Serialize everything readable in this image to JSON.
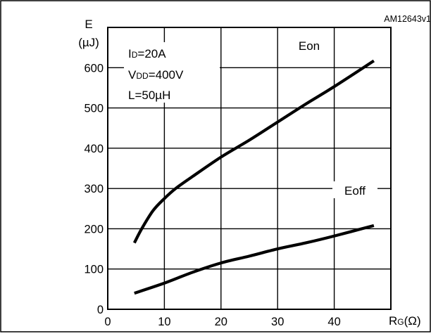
{
  "chart_data": {
    "type": "line",
    "figure_id": "AM12643v1",
    "ylabel_top": "E",
    "ylabel_unit": "(µJ)",
    "xlabel": "RG(Ω)",
    "xlabel_main": "R",
    "xlabel_sub": "G",
    "xlabel_unit": "(Ω)",
    "xlim": [
      0,
      50
    ],
    "ylim": [
      0,
      700
    ],
    "x_ticks": [
      0,
      10,
      20,
      30,
      40
    ],
    "y_ticks": [
      0,
      100,
      200,
      300,
      400,
      500,
      600
    ],
    "grid": true,
    "conditions": {
      "id_main": "I",
      "id_sub": "D",
      "id_value": "=20A",
      "vdd_main": "V",
      "vdd_sub": "DD",
      "vdd_value": "=400V",
      "l_text": "L=50µH"
    },
    "series": [
      {
        "name": "Eon",
        "label": "Eon",
        "x": [
          4.7,
          6,
          8,
          10,
          12,
          15,
          20,
          25,
          30,
          35,
          40,
          47
        ],
        "y": [
          165,
          200,
          245,
          275,
          300,
          330,
          378,
          420,
          465,
          510,
          553,
          617
        ]
      },
      {
        "name": "Eoff",
        "label": "Eoff",
        "x": [
          4.7,
          10,
          15,
          20,
          25,
          30,
          35,
          40,
          47
        ],
        "y": [
          40,
          65,
          92,
          115,
          132,
          150,
          165,
          182,
          208
        ]
      }
    ]
  }
}
